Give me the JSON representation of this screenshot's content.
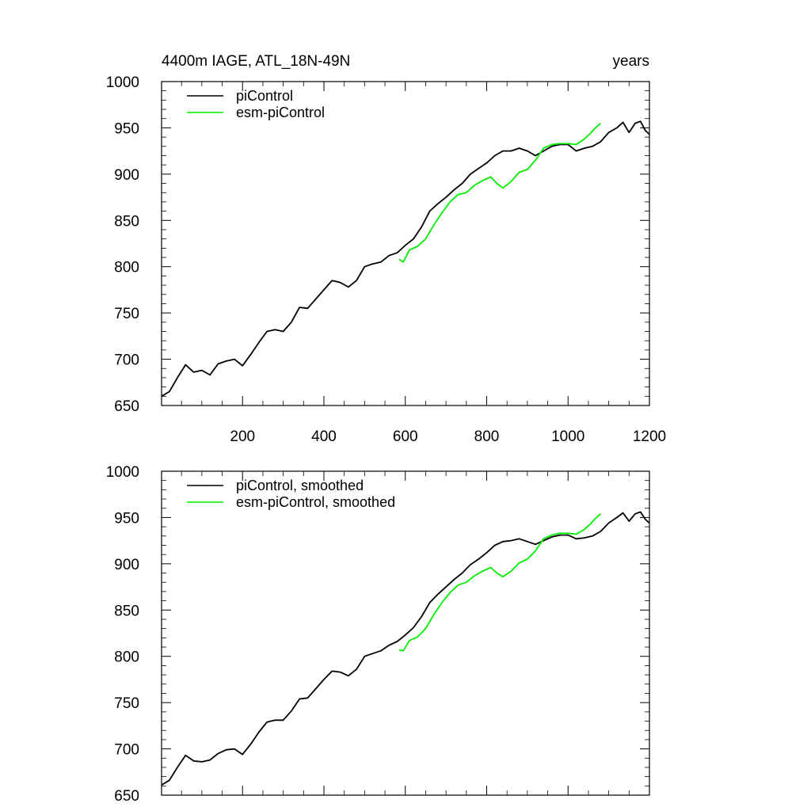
{
  "header": {
    "title_left": "4400m IAGE, ATL_18N-49N",
    "title_right": "years"
  },
  "colors": {
    "piControl": "#000000",
    "esm": "#00ee00",
    "axis": "#000000"
  },
  "chart_data": [
    {
      "type": "line",
      "title": "4400m IAGE, ATL_18N-49N",
      "xlabel": "years",
      "ylabel": "",
      "xlim": [
        1,
        1200
      ],
      "ylim": [
        650,
        1000
      ],
      "x_ticks": [
        200,
        400,
        600,
        800,
        1000,
        1200
      ],
      "x_tick_labels_shown": true,
      "y_ticks": [
        650,
        700,
        750,
        800,
        850,
        900,
        950,
        1000
      ],
      "legend_position": "top-left",
      "series": [
        {
          "name": "piControl",
          "color": "#000000",
          "points": [
            [
              1,
              660
            ],
            [
              20,
              665
            ],
            [
              40,
              680
            ],
            [
              60,
              694
            ],
            [
              80,
              686
            ],
            [
              100,
              688
            ],
            [
              120,
              683
            ],
            [
              140,
              695
            ],
            [
              160,
              698
            ],
            [
              180,
              700
            ],
            [
              200,
              693
            ],
            [
              220,
              705
            ],
            [
              240,
              718
            ],
            [
              260,
              730
            ],
            [
              280,
              732
            ],
            [
              300,
              730
            ],
            [
              320,
              740
            ],
            [
              340,
              756
            ],
            [
              360,
              755
            ],
            [
              380,
              765
            ],
            [
              400,
              775
            ],
            [
              420,
              785
            ],
            [
              440,
              783
            ],
            [
              460,
              778
            ],
            [
              480,
              785
            ],
            [
              500,
              800
            ],
            [
              520,
              803
            ],
            [
              540,
              805
            ],
            [
              560,
              812
            ],
            [
              580,
              815
            ],
            [
              600,
              823
            ],
            [
              620,
              830
            ],
            [
              640,
              843
            ],
            [
              660,
              860
            ],
            [
              680,
              868
            ],
            [
              700,
              875
            ],
            [
              720,
              883
            ],
            [
              740,
              890
            ],
            [
              760,
              900
            ],
            [
              780,
              906
            ],
            [
              800,
              912
            ],
            [
              820,
              920
            ],
            [
              840,
              925
            ],
            [
              860,
              925
            ],
            [
              880,
              928
            ],
            [
              900,
              925
            ],
            [
              920,
              920
            ],
            [
              940,
              925
            ],
            [
              960,
              930
            ],
            [
              980,
              932
            ],
            [
              1000,
              932
            ],
            [
              1020,
              925
            ],
            [
              1040,
              928
            ],
            [
              1060,
              930
            ],
            [
              1080,
              935
            ],
            [
              1100,
              945
            ],
            [
              1120,
              950
            ],
            [
              1135,
              956
            ],
            [
              1150,
              945
            ],
            [
              1165,
              955
            ],
            [
              1178,
              957
            ],
            [
              1190,
              947
            ],
            [
              1200,
              943
            ]
          ]
        },
        {
          "name": "esm-piControl",
          "color": "#00ee00",
          "points": [
            [
              585,
              808
            ],
            [
              595,
              805
            ],
            [
              610,
              818
            ],
            [
              630,
              822
            ],
            [
              650,
              830
            ],
            [
              670,
              845
            ],
            [
              690,
              858
            ],
            [
              710,
              870
            ],
            [
              730,
              878
            ],
            [
              750,
              880
            ],
            [
              770,
              888
            ],
            [
              790,
              893
            ],
            [
              810,
              897
            ],
            [
              825,
              890
            ],
            [
              840,
              885
            ],
            [
              860,
              892
            ],
            [
              880,
              902
            ],
            [
              900,
              905
            ],
            [
              920,
              915
            ],
            [
              940,
              928
            ],
            [
              960,
              932
            ],
            [
              980,
              933
            ],
            [
              1000,
              933
            ],
            [
              1020,
              932
            ],
            [
              1040,
              938
            ],
            [
              1055,
              944
            ],
            [
              1065,
              949
            ],
            [
              1075,
              953
            ],
            [
              1080,
              955
            ]
          ]
        }
      ]
    },
    {
      "type": "line",
      "title": "",
      "xlabel": "",
      "ylabel": "",
      "xlim": [
        1,
        1200
      ],
      "ylim": [
        650,
        1000
      ],
      "x_ticks": [
        200,
        400,
        600,
        800,
        1000,
        1200
      ],
      "x_tick_labels_shown": false,
      "y_ticks": [
        650,
        700,
        750,
        800,
        850,
        900,
        950,
        1000
      ],
      "legend_position": "top-left",
      "series": [
        {
          "name": "piControl, smoothed",
          "color": "#000000",
          "points": [
            [
              1,
              661
            ],
            [
              20,
              666
            ],
            [
              40,
              680
            ],
            [
              60,
              693
            ],
            [
              80,
              687
            ],
            [
              100,
              686
            ],
            [
              120,
              688
            ],
            [
              140,
              695
            ],
            [
              160,
              699
            ],
            [
              180,
              700
            ],
            [
              200,
              694
            ],
            [
              220,
              705
            ],
            [
              240,
              718
            ],
            [
              260,
              729
            ],
            [
              280,
              731
            ],
            [
              300,
              731
            ],
            [
              320,
              741
            ],
            [
              340,
              754
            ],
            [
              360,
              755
            ],
            [
              380,
              765
            ],
            [
              400,
              775
            ],
            [
              420,
              784
            ],
            [
              440,
              783
            ],
            [
              460,
              779
            ],
            [
              480,
              786
            ],
            [
              500,
              800
            ],
            [
              520,
              803
            ],
            [
              540,
              806
            ],
            [
              560,
              812
            ],
            [
              580,
              816
            ],
            [
              600,
              823
            ],
            [
              620,
              831
            ],
            [
              640,
              843
            ],
            [
              660,
              858
            ],
            [
              680,
              867
            ],
            [
              700,
              875
            ],
            [
              720,
              883
            ],
            [
              740,
              890
            ],
            [
              760,
              899
            ],
            [
              780,
              905
            ],
            [
              800,
              912
            ],
            [
              820,
              920
            ],
            [
              840,
              924
            ],
            [
              860,
              925
            ],
            [
              880,
              927
            ],
            [
              900,
              924
            ],
            [
              920,
              921
            ],
            [
              940,
              925
            ],
            [
              960,
              929
            ],
            [
              980,
              931
            ],
            [
              1000,
              931
            ],
            [
              1020,
              927
            ],
            [
              1040,
              928
            ],
            [
              1060,
              930
            ],
            [
              1080,
              935
            ],
            [
              1100,
              944
            ],
            [
              1120,
              950
            ],
            [
              1135,
              955
            ],
            [
              1150,
              946
            ],
            [
              1165,
              954
            ],
            [
              1178,
              956
            ],
            [
              1190,
              948
            ],
            [
              1200,
              944
            ]
          ]
        },
        {
          "name": "esm-piControl, smoothed",
          "color": "#00ee00",
          "points": [
            [
              585,
              807
            ],
            [
              595,
              806
            ],
            [
              610,
              817
            ],
            [
              630,
              821
            ],
            [
              650,
              830
            ],
            [
              670,
              845
            ],
            [
              690,
              858
            ],
            [
              710,
              869
            ],
            [
              730,
              877
            ],
            [
              750,
              880
            ],
            [
              770,
              887
            ],
            [
              790,
              892
            ],
            [
              810,
              896
            ],
            [
              825,
              890
            ],
            [
              840,
              886
            ],
            [
              860,
              892
            ],
            [
              880,
              901
            ],
            [
              900,
              905
            ],
            [
              920,
              914
            ],
            [
              940,
              927
            ],
            [
              960,
              931
            ],
            [
              980,
              933
            ],
            [
              1000,
              933
            ],
            [
              1020,
              932
            ],
            [
              1040,
              937
            ],
            [
              1055,
              943
            ],
            [
              1065,
              948
            ],
            [
              1075,
              952
            ],
            [
              1080,
              954
            ]
          ]
        }
      ]
    }
  ]
}
